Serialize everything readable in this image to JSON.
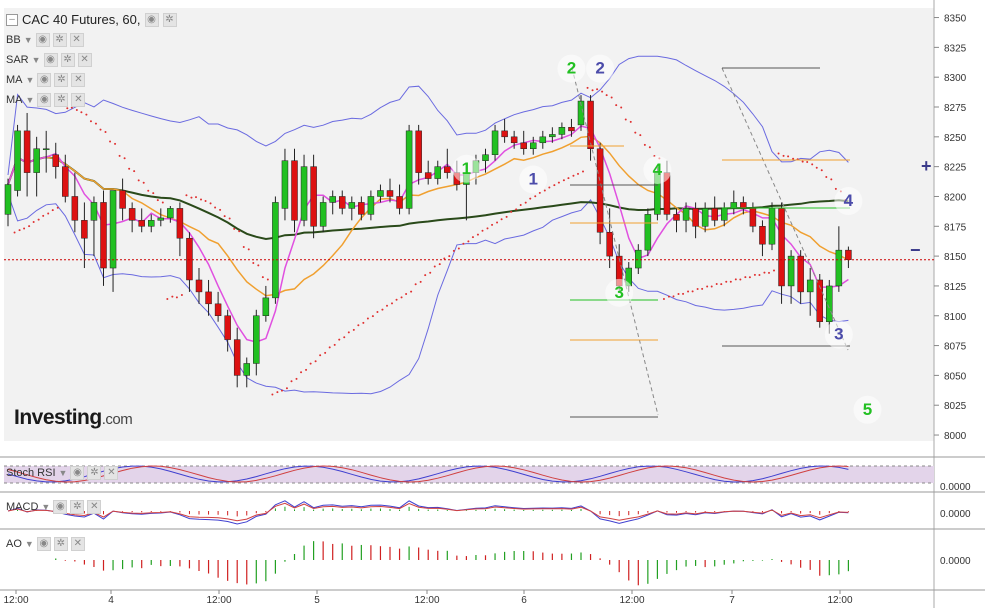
{
  "title": "CAC 40 Futures, 60,",
  "indicators": [
    "BB",
    "SAR",
    "MA",
    "MA"
  ],
  "subpanels": {
    "stoch": "Stoch RSI",
    "macd": "MACD",
    "ao": "AO"
  },
  "sub_axis_value": "0.0000",
  "logo": {
    "brand": "Investing",
    "suffix": ".com"
  },
  "zoom": {
    "plus": "+",
    "minus": "−"
  },
  "colors": {
    "up": "#22c022",
    "down": "#dd1111",
    "bb": "#6a6ae0",
    "ma_fast": "#e050e0",
    "ma_mid": "#f0a030",
    "ma_slow": "#2a4a1a",
    "sar": "#e03030",
    "price_line": "#cc0000"
  },
  "chart_data": {
    "type": "candlestick",
    "title": "CAC 40 Futures, 60,",
    "y_ticks": [
      8000,
      8025,
      8050,
      8075,
      8100,
      8125,
      8150,
      8175,
      8200,
      8225,
      8250,
      8275,
      8300,
      8325,
      8350
    ],
    "ylim": [
      7995,
      8358
    ],
    "x_labels": [
      "12:00",
      "4",
      "12:00",
      "5",
      "12:00",
      "6",
      "12:00",
      "7",
      "12:00"
    ],
    "current_price": 8147,
    "candles": [
      [
        8185,
        8215,
        8175,
        8210
      ],
      [
        8205,
        8260,
        8200,
        8255
      ],
      [
        8255,
        8270,
        8200,
        8220
      ],
      [
        8220,
        8250,
        8200,
        8240
      ],
      [
        8240,
        8255,
        8220,
        8240
      ],
      [
        8235,
        8245,
        8215,
        8225
      ],
      [
        8225,
        8235,
        8195,
        8200
      ],
      [
        8200,
        8220,
        8170,
        8180
      ],
      [
        8180,
        8195,
        8140,
        8165
      ],
      [
        8180,
        8200,
        8150,
        8195
      ],
      [
        8195,
        8205,
        8125,
        8140
      ],
      [
        8140,
        8205,
        8120,
        8205
      ],
      [
        8205,
        8215,
        8180,
        8190
      ],
      [
        8190,
        8195,
        8170,
        8180
      ],
      [
        8180,
        8190,
        8170,
        8175
      ],
      [
        8175,
        8185,
        8170,
        8180
      ],
      [
        8180,
        8190,
        8175,
        8182
      ],
      [
        8182,
        8192,
        8178,
        8190
      ],
      [
        8190,
        8195,
        8150,
        8165
      ],
      [
        8165,
        8170,
        8120,
        8130
      ],
      [
        8130,
        8140,
        8110,
        8120
      ],
      [
        8120,
        8130,
        8100,
        8110
      ],
      [
        8110,
        8120,
        8095,
        8100
      ],
      [
        8100,
        8105,
        8070,
        8080
      ],
      [
        8080,
        8090,
        8040,
        8050
      ],
      [
        8050,
        8065,
        8040,
        8060
      ],
      [
        8060,
        8105,
        8050,
        8100
      ],
      [
        8100,
        8125,
        8095,
        8115
      ],
      [
        8115,
        8200,
        8110,
        8195
      ],
      [
        8190,
        8240,
        8180,
        8230
      ],
      [
        8230,
        8240,
        8170,
        8180
      ],
      [
        8180,
        8235,
        8175,
        8225
      ],
      [
        8225,
        8235,
        8165,
        8175
      ],
      [
        8175,
        8200,
        8170,
        8195
      ],
      [
        8195,
        8205,
        8185,
        8200
      ],
      [
        8200,
        8205,
        8185,
        8190
      ],
      [
        8190,
        8200,
        8180,
        8195
      ],
      [
        8195,
        8200,
        8180,
        8185
      ],
      [
        8185,
        8205,
        8180,
        8200
      ],
      [
        8200,
        8210,
        8195,
        8205
      ],
      [
        8205,
        8215,
        8195,
        8200
      ],
      [
        8200,
        8210,
        8185,
        8190
      ],
      [
        8190,
        8260,
        8185,
        8255
      ],
      [
        8255,
        8260,
        8210,
        8220
      ],
      [
        8220,
        8230,
        8210,
        8215
      ],
      [
        8215,
        8230,
        8210,
        8225
      ],
      [
        8225,
        8240,
        8215,
        8220
      ],
      [
        8220,
        8230,
        8205,
        8210
      ],
      [
        8210,
        8225,
        8180,
        8220
      ],
      [
        8220,
        8235,
        8210,
        8230
      ],
      [
        8230,
        8240,
        8220,
        8235
      ],
      [
        8235,
        8260,
        8230,
        8255
      ],
      [
        8255,
        8265,
        8245,
        8250
      ],
      [
        8250,
        8255,
        8240,
        8245
      ],
      [
        8245,
        8255,
        8235,
        8240
      ],
      [
        8240,
        8250,
        8235,
        8245
      ],
      [
        8245,
        8255,
        8240,
        8250
      ],
      [
        8250,
        8258,
        8245,
        8252
      ],
      [
        8252,
        8262,
        8248,
        8258
      ],
      [
        8258,
        8265,
        8250,
        8255
      ],
      [
        8260,
        8285,
        8255,
        8280
      ],
      [
        8280,
        8285,
        8230,
        8240
      ],
      [
        8240,
        8245,
        8160,
        8170
      ],
      [
        8170,
        8190,
        8140,
        8150
      ],
      [
        8150,
        8160,
        8120,
        8125
      ],
      [
        8125,
        8145,
        8120,
        8140
      ],
      [
        8140,
        8160,
        8135,
        8155
      ],
      [
        8155,
        8190,
        8150,
        8185
      ],
      [
        8185,
        8225,
        8180,
        8220
      ],
      [
        8220,
        8230,
        8180,
        8185
      ],
      [
        8185,
        8190,
        8170,
        8180
      ],
      [
        8180,
        8195,
        8170,
        8190
      ],
      [
        8190,
        8195,
        8165,
        8175
      ],
      [
        8175,
        8195,
        8170,
        8190
      ],
      [
        8190,
        8200,
        8175,
        8180
      ],
      [
        8180,
        8195,
        8175,
        8190
      ],
      [
        8190,
        8205,
        8185,
        8195
      ],
      [
        8195,
        8200,
        8185,
        8190
      ],
      [
        8190,
        8195,
        8170,
        8175
      ],
      [
        8175,
        8180,
        8150,
        8160
      ],
      [
        8160,
        8195,
        8155,
        8190
      ],
      [
        8190,
        8195,
        8110,
        8125
      ],
      [
        8125,
        8155,
        8110,
        8150
      ],
      [
        8150,
        8155,
        8110,
        8120
      ],
      [
        8120,
        8140,
        8100,
        8130
      ],
      [
        8130,
        8135,
        8090,
        8095
      ],
      [
        8095,
        8130,
        8085,
        8125
      ],
      [
        8125,
        8175,
        8120,
        8155
      ],
      [
        8155,
        8158,
        8140,
        8147
      ]
    ],
    "elliott_labels": [
      {
        "text": "1",
        "price": 8210,
        "bar": 55,
        "color": "#4c4caa"
      },
      {
        "text": "2",
        "price": 8303,
        "bar": 62,
        "color": "#4c4caa"
      },
      {
        "text": "3",
        "price": 8080,
        "bar": 87,
        "color": "#4c4caa"
      },
      {
        "text": "4",
        "price": 8192,
        "bar": 88,
        "color": "#4c4caa"
      },
      {
        "text": "1",
        "price": 8219,
        "bar": 48,
        "color": "#22c022"
      },
      {
        "text": "2",
        "price": 8303,
        "bar": 59,
        "color": "#22c022"
      },
      {
        "text": "3",
        "price": 8115,
        "bar": 64,
        "color": "#22c022"
      },
      {
        "text": "4",
        "price": 8218,
        "bar": 68,
        "color": "#22c022"
      },
      {
        "text": "5",
        "price": 8017,
        "bar": 90,
        "color": "#22c022"
      }
    ]
  }
}
